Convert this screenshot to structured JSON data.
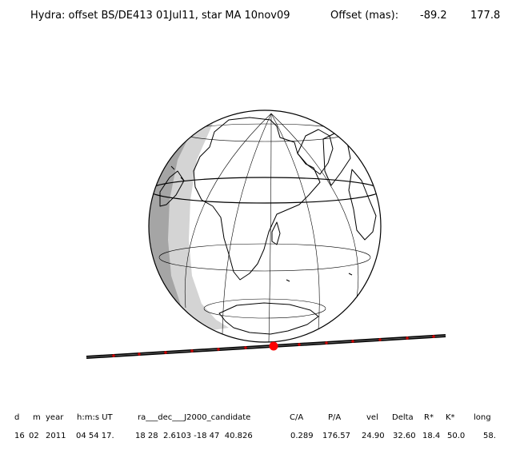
{
  "title": {
    "prefix": "Hydra: offset BS/DE413 01Jul11, star MA 10nov09",
    "offset_label": "Offset (mas):",
    "offset_x": "-89.2",
    "offset_y": "177.8"
  },
  "colors": {
    "ocean": "#ffffff",
    "twilight_shade": "#d4d4d4",
    "night_shade": "#a5a5a5",
    "coast": "#000000",
    "shadow_track": "#333333",
    "track_ticks": "#d00000",
    "closest_approach": "#ff0000"
  },
  "table": {
    "headers": [
      "d",
      "m",
      "year",
      "h:m:s UT",
      "ra___dec___J2000_candidate",
      "C/A",
      "P/A",
      "vel",
      "Delta",
      "R*",
      "K*",
      "long"
    ],
    "values": [
      "16",
      "02",
      "2011",
      "04 54 17.",
      "18 28  2.6103 -18 47  40.826",
      "0.289",
      "176.57",
      "24.90",
      "32.60",
      "18.4",
      "50.0",
      "58."
    ]
  }
}
